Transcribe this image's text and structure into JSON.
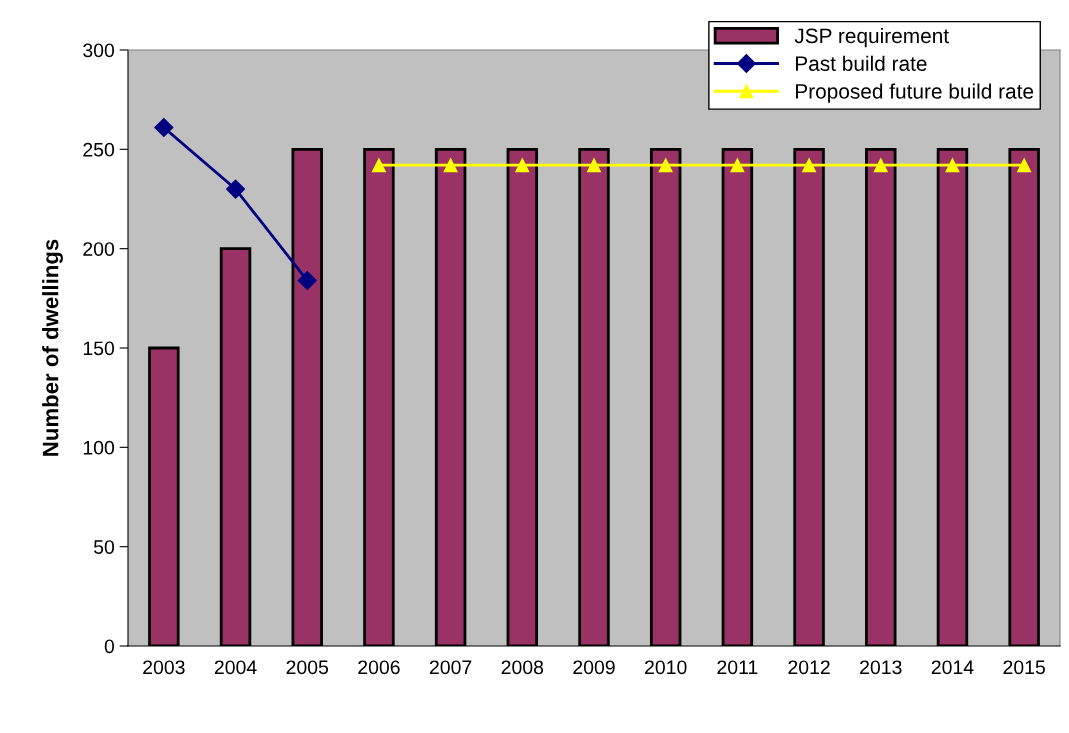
{
  "chart_data": {
    "type": "bar",
    "ylabel": "Number of dwellings",
    "categories": [
      "2003",
      "2004",
      "2005",
      "2006",
      "2007",
      "2008",
      "2009",
      "2010",
      "2011",
      "2012",
      "2013",
      "2014",
      "2015"
    ],
    "series": [
      {
        "name": "JSP requirement",
        "color": "#993366",
        "values": [
          150,
          200,
          250,
          250,
          250,
          250,
          250,
          250,
          250,
          250,
          250,
          250,
          250
        ]
      },
      {
        "name": "Past build rate",
        "type": "line",
        "color": "#000080",
        "marker": "diamond",
        "values": [
          261,
          230,
          184,
          null,
          null,
          null,
          null,
          null,
          null,
          null,
          null,
          null,
          null
        ]
      },
      {
        "name": "Proposed future build rate",
        "type": "line",
        "color": "#ffff00",
        "marker": "triangle",
        "values": [
          null,
          null,
          null,
          242,
          242,
          242,
          242,
          242,
          242,
          242,
          242,
          242,
          242
        ]
      }
    ],
    "ylim": [
      0,
      300
    ],
    "yticks": [
      0,
      50,
      100,
      150,
      200,
      250,
      300
    ],
    "grid": false,
    "legend": "top right"
  }
}
